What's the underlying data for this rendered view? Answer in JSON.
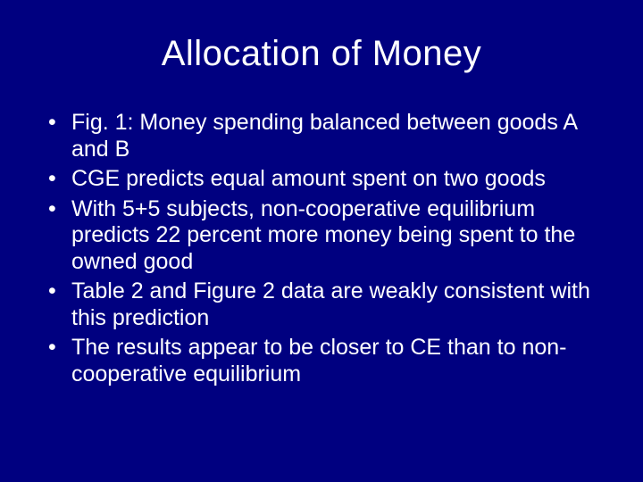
{
  "slide": {
    "background_color": "#000080",
    "text_color": "#ffffff",
    "title": "Allocation of Money",
    "title_fontsize": 40,
    "body_fontsize": 25,
    "font_family": "Arial",
    "bullets": [
      "Fig. 1: Money spending balanced between goods A and B",
      "CGE predicts equal amount spent on two goods",
      "With 5+5 subjects, non-cooperative equilibrium predicts 22 percent more money being spent to the owned good",
      "Table 2 and Figure 2 data are weakly consistent with this prediction",
      "The results appear to be closer to CE than to non-cooperative equilibrium"
    ]
  }
}
